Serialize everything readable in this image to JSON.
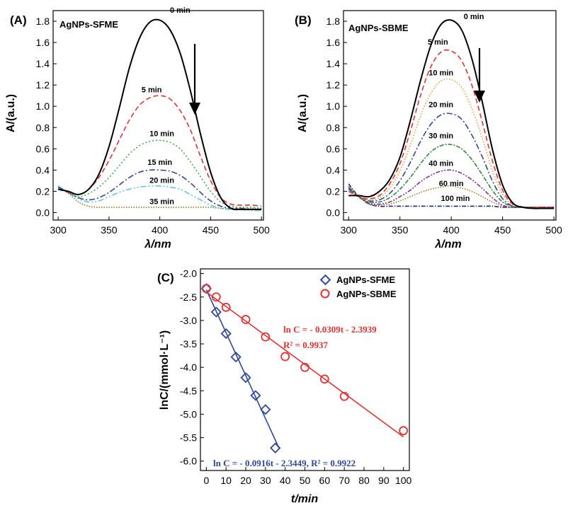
{
  "panel_labels": [
    "(A)",
    "(B)",
    "(C)"
  ],
  "chart_data": [
    {
      "type": "line",
      "panel": "(A)",
      "title": "AgNPs-SFME",
      "xlabel": "λ/nm",
      "ylabel": "A/(a.u.)",
      "xlim": [
        295,
        502
      ],
      "ylim": [
        -0.07,
        1.9
      ],
      "xticks": [
        300,
        350,
        400,
        450,
        500
      ],
      "yticks": [
        0.0,
        0.2,
        0.4,
        0.6,
        0.8,
        1.0,
        1.2,
        1.4,
        1.6,
        1.8
      ],
      "x": [
        300,
        310,
        320,
        330,
        340,
        350,
        360,
        370,
        380,
        390,
        400,
        410,
        420,
        430,
        440,
        450,
        460,
        470,
        480,
        490,
        500
      ],
      "series": [
        {
          "name": "0 min",
          "color": "#000000",
          "dash": "",
          "width": 2,
          "label_x": 420,
          "label_y": 1.88,
          "values": [
            0.22,
            0.2,
            0.17,
            0.22,
            0.36,
            0.62,
            0.98,
            1.36,
            1.64,
            1.79,
            1.81,
            1.72,
            1.5,
            1.15,
            0.74,
            0.38,
            0.14,
            0.04,
            0.03,
            0.03,
            0.03
          ]
        },
        {
          "name": "5 min",
          "color": "#e8312e",
          "dash": "7,4",
          "width": 1.6,
          "label_x": 392,
          "label_y": 1.13,
          "values": [
            0.22,
            0.19,
            0.17,
            0.22,
            0.33,
            0.49,
            0.68,
            0.87,
            1.01,
            1.08,
            1.1,
            1.07,
            0.96,
            0.78,
            0.53,
            0.3,
            0.14,
            0.08,
            0.07,
            0.07,
            0.06
          ]
        },
        {
          "name": "10 min",
          "color": "#3fae49",
          "dash": "2,3",
          "width": 1.6,
          "label_x": 402,
          "label_y": 0.72,
          "values": [
            0.23,
            0.19,
            0.15,
            0.18,
            0.24,
            0.33,
            0.44,
            0.55,
            0.63,
            0.67,
            0.68,
            0.66,
            0.6,
            0.48,
            0.34,
            0.2,
            0.1,
            0.06,
            0.05,
            0.05,
            0.04
          ]
        },
        {
          "name": "15 min",
          "color": "#2f47a0",
          "dash": "8,3,2,3",
          "width": 1.6,
          "label_x": 400,
          "label_y": 0.45,
          "values": [
            0.24,
            0.19,
            0.14,
            0.12,
            0.14,
            0.19,
            0.26,
            0.33,
            0.38,
            0.4,
            0.4,
            0.39,
            0.35,
            0.28,
            0.19,
            0.11,
            0.06,
            0.04,
            0.04,
            0.03,
            0.03
          ]
        },
        {
          "name": "20 min",
          "color": "#5bc8e6",
          "dash": "8,3,2,3,2,3",
          "width": 1.6,
          "label_x": 402,
          "label_y": 0.28,
          "values": [
            0.25,
            0.19,
            0.13,
            0.1,
            0.11,
            0.15,
            0.19,
            0.22,
            0.24,
            0.25,
            0.25,
            0.24,
            0.22,
            0.17,
            0.12,
            0.07,
            0.04,
            0.03,
            0.03,
            0.02,
            0.02
          ]
        },
        {
          "name": "35 min",
          "color": "#8b7a1a",
          "dash": "1.5,2",
          "width": 1.6,
          "label_x": 402,
          "label_y": 0.08,
          "values": [
            0.25,
            0.18,
            0.1,
            0.06,
            0.05,
            0.05,
            0.05,
            0.05,
            0.05,
            0.05,
            0.05,
            0.05,
            0.05,
            0.05,
            0.05,
            0.05,
            0.04,
            0.04,
            0.04,
            0.04,
            0.04
          ]
        }
      ]
    },
    {
      "type": "line",
      "panel": "(B)",
      "title": "AgNPs-SBME",
      "xlabel": "λ/nm",
      "ylabel": "A/(a.u.)",
      "xlim": [
        295,
        502
      ],
      "ylim": [
        -0.07,
        1.9
      ],
      "xticks": [
        300,
        350,
        400,
        450,
        500
      ],
      "yticks": [
        0.0,
        0.2,
        0.4,
        0.6,
        0.8,
        1.0,
        1.2,
        1.4,
        1.6,
        1.8
      ],
      "x": [
        300,
        310,
        320,
        330,
        340,
        350,
        360,
        370,
        380,
        390,
        400,
        410,
        420,
        430,
        440,
        450,
        460,
        470,
        480,
        490,
        500
      ],
      "series": [
        {
          "name": "0 min",
          "color": "#000000",
          "dash": "",
          "width": 2,
          "label_x": 422,
          "label_y": 1.82,
          "values": [
            0.16,
            0.16,
            0.15,
            0.2,
            0.31,
            0.52,
            0.86,
            1.24,
            1.57,
            1.77,
            1.81,
            1.72,
            1.45,
            1.05,
            0.6,
            0.26,
            0.09,
            0.05,
            0.04,
            0.04,
            0.04
          ]
        },
        {
          "name": "5 min",
          "color": "#e8312e",
          "dash": "7,4",
          "width": 1.6,
          "label_x": 387,
          "label_y": 1.58,
          "values": [
            0.2,
            0.15,
            0.13,
            0.16,
            0.27,
            0.46,
            0.76,
            1.1,
            1.37,
            1.51,
            1.52,
            1.43,
            1.2,
            0.86,
            0.49,
            0.21,
            0.08,
            0.05,
            0.05,
            0.05,
            0.05
          ]
        },
        {
          "name": "10 min",
          "color": "#f39a2e",
          "dash": "1.5,2.5",
          "width": 1.6,
          "label_x": 390,
          "label_y": 1.29,
          "values": [
            0.2,
            0.15,
            0.12,
            0.14,
            0.23,
            0.39,
            0.63,
            0.91,
            1.12,
            1.24,
            1.25,
            1.18,
            0.98,
            0.71,
            0.4,
            0.17,
            0.07,
            0.05,
            0.05,
            0.05,
            0.05
          ]
        },
        {
          "name": "20 min",
          "color": "#2f47a0",
          "dash": "8,3,2,3",
          "width": 1.6,
          "label_x": 390,
          "label_y": 0.99,
          "values": [
            0.22,
            0.15,
            0.11,
            0.12,
            0.18,
            0.3,
            0.47,
            0.67,
            0.83,
            0.92,
            0.93,
            0.88,
            0.73,
            0.53,
            0.3,
            0.13,
            0.06,
            0.05,
            0.05,
            0.05,
            0.05
          ]
        },
        {
          "name": "30 min",
          "color": "#2a8a3e",
          "dash": "6,2,2,2",
          "width": 1.6,
          "label_x": 390,
          "label_y": 0.7,
          "values": [
            0.23,
            0.15,
            0.1,
            0.1,
            0.14,
            0.22,
            0.33,
            0.46,
            0.57,
            0.63,
            0.64,
            0.6,
            0.5,
            0.36,
            0.21,
            0.1,
            0.06,
            0.05,
            0.05,
            0.05,
            0.05
          ]
        },
        {
          "name": "40 min",
          "color": "#8b2f8f",
          "dash": "6,2,2,2,2,2",
          "width": 1.6,
          "label_x": 390,
          "label_y": 0.44,
          "values": [
            0.24,
            0.15,
            0.09,
            0.08,
            0.1,
            0.15,
            0.21,
            0.29,
            0.35,
            0.39,
            0.4,
            0.37,
            0.31,
            0.23,
            0.14,
            0.07,
            0.05,
            0.05,
            0.05,
            0.05,
            0.05
          ]
        },
        {
          "name": "60 min",
          "color": "#a07a20",
          "dash": "1.5,2",
          "width": 1.6,
          "label_x": 400,
          "label_y": 0.25,
          "values": [
            0.25,
            0.15,
            0.08,
            0.07,
            0.08,
            0.11,
            0.15,
            0.19,
            0.22,
            0.24,
            0.25,
            0.23,
            0.2,
            0.15,
            0.1,
            0.06,
            0.05,
            0.05,
            0.05,
            0.05,
            0.05
          ]
        },
        {
          "name": "100 min",
          "color": "#1f2a7a",
          "dash": "6,2,1.5,2",
          "width": 1.6,
          "label_x": 404,
          "label_y": 0.11,
          "values": [
            0.27,
            0.15,
            0.08,
            0.06,
            0.06,
            0.06,
            0.06,
            0.06,
            0.06,
            0.06,
            0.06,
            0.06,
            0.06,
            0.06,
            0.06,
            0.05,
            0.05,
            0.05,
            0.05,
            0.05,
            0.05
          ]
        }
      ]
    },
    {
      "type": "scatter",
      "panel": "(C)",
      "xlabel": "t/min",
      "ylabel": "lnC/(mmol·L⁻¹)",
      "xlim": [
        -3,
        103
      ],
      "ylim": [
        -6.2,
        -1.9
      ],
      "xticks": [
        0,
        10,
        20,
        30,
        40,
        50,
        60,
        70,
        80,
        90,
        100
      ],
      "yticks": [
        -2.0,
        -2.5,
        -3.0,
        -3.5,
        -4.0,
        -4.5,
        -5.0,
        -5.5,
        -6.0
      ],
      "legend_position": "top-right",
      "series": [
        {
          "name": "AgNPs-SFME",
          "marker": "diamond",
          "color": "#2f47a0",
          "x": [
            0,
            5,
            10,
            15,
            20,
            25,
            30,
            35
          ],
          "y": [
            -2.32,
            -2.82,
            -3.28,
            -3.78,
            -4.22,
            -4.6,
            -4.9,
            -5.72
          ],
          "fit": {
            "slope": -0.0916,
            "intercept": -2.3449,
            "x_range": [
              0,
              37
            ],
            "text": "ln C = - 0.0916t - 2.3449, R² = 0.9922"
          }
        },
        {
          "name": "AgNPs-SBME",
          "marker": "circle",
          "color": "#e8312e",
          "x": [
            0,
            5,
            10,
            20,
            30,
            40,
            50,
            60,
            70,
            100
          ],
          "y": [
            -2.32,
            -2.5,
            -2.72,
            -2.98,
            -3.35,
            -3.77,
            -4.0,
            -4.25,
            -4.62,
            -5.35
          ],
          "fit": {
            "slope": -0.0309,
            "intercept": -2.3939,
            "x_range": [
              0,
              100
            ],
            "text": "ln C = - 0.0309t - 2.3939",
            "text2": "R² = 0.9937"
          }
        }
      ]
    }
  ]
}
